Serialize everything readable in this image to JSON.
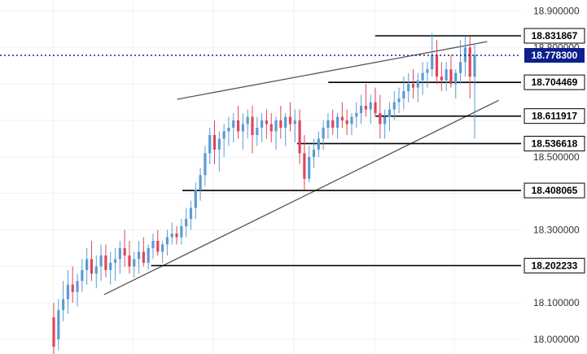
{
  "chart_data": {
    "type": "candlestick",
    "title": "",
    "xlabel": "",
    "ylabel": "",
    "ylim": [
      17.96,
      18.93
    ],
    "grid": true,
    "colors": {
      "up": "#5b9bd5",
      "down": "#e0455a",
      "trendline": "#555555",
      "level_line": "#000000",
      "price_label_bg": "#ffffff",
      "current_price_bg": "#0d1f8c",
      "current_price_line": "#1a237e"
    },
    "y_ticks": [
      {
        "value": 18.9,
        "label": "18.900000"
      },
      {
        "value": 18.8,
        "label": "18.800000"
      },
      {
        "value": 18.5,
        "label": "18.500000"
      },
      {
        "value": 18.3,
        "label": "18.300000"
      },
      {
        "value": 18.1,
        "label": "18.100000"
      },
      {
        "value": 18.0,
        "label": "18.000000"
      }
    ],
    "current_price": {
      "value": 18.7783,
      "label": "18.778300"
    },
    "levels": [
      {
        "value": 18.831867,
        "label": "18.831867",
        "x_start": 0.72
      },
      {
        "value": 18.704469,
        "label": "18.704469",
        "x_start": 0.63
      },
      {
        "value": 18.611917,
        "label": "18.611917",
        "x_start": 0.72
      },
      {
        "value": 18.536618,
        "label": "18.536618",
        "x_start": 0.57
      },
      {
        "value": 18.408065,
        "label": "18.408065",
        "x_start": 0.35
      },
      {
        "value": 18.202233,
        "label": "18.202233",
        "x_start": 0.29
      }
    ],
    "trendlines": [
      {
        "x1": 0.34,
        "y1": 18.658,
        "x2": 0.935,
        "y2": 18.816
      },
      {
        "x1": 0.2,
        "y1": 18.123,
        "x2": 0.957,
        "y2": 18.655
      }
    ],
    "candles": [
      [
        18.06,
        18.1,
        17.95,
        17.98
      ],
      [
        18.0,
        18.11,
        17.97,
        18.08
      ],
      [
        18.08,
        18.16,
        18.05,
        18.11
      ],
      [
        18.11,
        18.19,
        18.07,
        18.15
      ],
      [
        18.15,
        18.2,
        18.1,
        18.13
      ],
      [
        18.13,
        18.18,
        18.09,
        18.16
      ],
      [
        18.16,
        18.22,
        18.13,
        18.19
      ],
      [
        18.19,
        18.25,
        18.15,
        18.22
      ],
      [
        18.22,
        18.27,
        18.16,
        18.18
      ],
      [
        18.18,
        18.23,
        18.14,
        18.2
      ],
      [
        18.2,
        18.26,
        18.16,
        18.23
      ],
      [
        18.23,
        18.26,
        18.17,
        18.19
      ],
      [
        18.19,
        18.24,
        18.15,
        18.21
      ],
      [
        18.21,
        18.25,
        18.16,
        18.22
      ],
      [
        18.22,
        18.27,
        18.18,
        18.25
      ],
      [
        18.25,
        18.3,
        18.2,
        18.23
      ],
      [
        18.23,
        18.27,
        18.18,
        18.2
      ],
      [
        18.2,
        18.24,
        18.17,
        18.22
      ],
      [
        18.22,
        18.27,
        18.18,
        18.24
      ],
      [
        18.24,
        18.28,
        18.2,
        18.21
      ],
      [
        18.21,
        18.26,
        18.19,
        18.25
      ],
      [
        18.25,
        18.29,
        18.22,
        18.27
      ],
      [
        18.27,
        18.3,
        18.23,
        18.24
      ],
      [
        18.24,
        18.27,
        18.21,
        18.26
      ],
      [
        18.26,
        18.3,
        18.23,
        18.28
      ],
      [
        18.28,
        18.32,
        18.26,
        18.29
      ],
      [
        18.29,
        18.31,
        18.26,
        18.28
      ],
      [
        18.28,
        18.33,
        18.26,
        18.31
      ],
      [
        18.31,
        18.36,
        18.28,
        18.33
      ],
      [
        18.33,
        18.38,
        18.3,
        18.36
      ],
      [
        18.36,
        18.43,
        18.33,
        18.41
      ],
      [
        18.41,
        18.47,
        18.38,
        18.45
      ],
      [
        18.45,
        18.53,
        18.42,
        18.51
      ],
      [
        18.51,
        18.58,
        18.48,
        18.56
      ],
      [
        18.56,
        18.6,
        18.48,
        18.52
      ],
      [
        18.52,
        18.57,
        18.46,
        18.55
      ],
      [
        18.55,
        18.59,
        18.5,
        18.57
      ],
      [
        18.57,
        18.61,
        18.53,
        18.58
      ],
      [
        18.58,
        18.62,
        18.54,
        18.6
      ],
      [
        18.6,
        18.64,
        18.55,
        18.57
      ],
      [
        18.57,
        18.62,
        18.52,
        18.59
      ],
      [
        18.59,
        18.63,
        18.55,
        18.61
      ],
      [
        18.61,
        18.64,
        18.51,
        18.56
      ],
      [
        18.56,
        18.61,
        18.53,
        18.58
      ],
      [
        18.58,
        18.62,
        18.54,
        18.6
      ],
      [
        18.6,
        18.63,
        18.55,
        18.59
      ],
      [
        18.59,
        18.62,
        18.54,
        18.57
      ],
      [
        18.57,
        18.61,
        18.52,
        18.6
      ],
      [
        18.6,
        18.64,
        18.55,
        18.58
      ],
      [
        18.58,
        18.62,
        18.53,
        18.61
      ],
      [
        18.61,
        18.65,
        18.57,
        18.59
      ],
      [
        18.59,
        18.63,
        18.54,
        18.6
      ],
      [
        18.6,
        18.63,
        18.48,
        18.51
      ],
      [
        18.51,
        18.56,
        18.41,
        18.44
      ],
      [
        18.44,
        18.53,
        18.43,
        18.5
      ],
      [
        18.5,
        18.55,
        18.47,
        18.52
      ],
      [
        18.52,
        18.57,
        18.5,
        18.55
      ],
      [
        18.55,
        18.6,
        18.52,
        18.58
      ],
      [
        18.58,
        18.62,
        18.55,
        18.6
      ],
      [
        18.6,
        18.63,
        18.56,
        18.58
      ],
      [
        18.58,
        18.62,
        18.55,
        18.61
      ],
      [
        18.61,
        18.65,
        18.58,
        18.6
      ],
      [
        18.6,
        18.63,
        18.56,
        18.59
      ],
      [
        18.59,
        18.62,
        18.56,
        18.61
      ],
      [
        18.61,
        18.65,
        18.58,
        18.62
      ],
      [
        18.62,
        18.67,
        18.59,
        18.64
      ],
      [
        18.64,
        18.7,
        18.61,
        18.63
      ],
      [
        18.63,
        18.67,
        18.59,
        18.65
      ],
      [
        18.65,
        18.69,
        18.61,
        18.62
      ],
      [
        18.62,
        18.67,
        18.55,
        18.59
      ],
      [
        18.59,
        18.63,
        18.55,
        18.61
      ],
      [
        18.61,
        18.65,
        18.57,
        18.63
      ],
      [
        18.63,
        18.68,
        18.6,
        18.65
      ],
      [
        18.65,
        18.69,
        18.62,
        18.66
      ],
      [
        18.66,
        18.72,
        18.63,
        18.68
      ],
      [
        18.68,
        18.73,
        18.65,
        18.7
      ],
      [
        18.7,
        18.74,
        18.66,
        18.69
      ],
      [
        18.69,
        18.73,
        18.65,
        18.71
      ],
      [
        18.71,
        18.76,
        18.67,
        18.73
      ],
      [
        18.73,
        18.76,
        18.69,
        18.74
      ],
      [
        18.74,
        18.84,
        18.72,
        18.78
      ],
      [
        18.78,
        18.82,
        18.7,
        18.72
      ],
      [
        18.72,
        18.76,
        18.68,
        18.71
      ],
      [
        18.71,
        18.76,
        18.68,
        18.74
      ],
      [
        18.74,
        18.78,
        18.69,
        18.7
      ],
      [
        18.7,
        18.74,
        18.66,
        18.73
      ],
      [
        18.73,
        18.82,
        18.7,
        18.76
      ],
      [
        18.76,
        18.83,
        18.72,
        18.8
      ],
      [
        18.8,
        18.83,
        18.66,
        18.72
      ],
      [
        18.72,
        18.81,
        18.55,
        18.78
      ]
    ]
  }
}
